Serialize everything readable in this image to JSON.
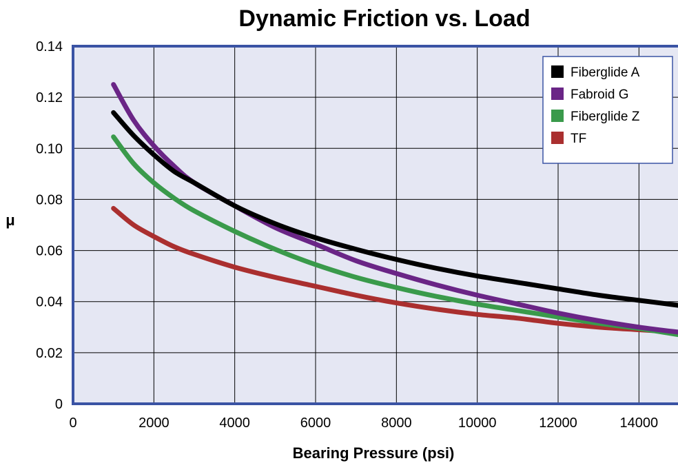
{
  "chart_data": {
    "type": "line",
    "title": "Dynamic Friction vs. Load",
    "xlabel": "Bearing Pressure (psi)",
    "ylabel": "μ",
    "xlim": [
      0,
      15000
    ],
    "ylim": [
      0,
      0.14
    ],
    "x_ticks": [
      "0",
      "2000",
      "4000",
      "6000",
      "8000",
      "10000",
      "12000",
      "14000"
    ],
    "y_ticks": [
      "0",
      "0.02",
      "0.04",
      "0.06",
      "0.08",
      "0.10",
      "0.12",
      "0.14"
    ],
    "grid": true,
    "legend_position": "top-right",
    "series": [
      {
        "name": "Fiberglide A",
        "color": "#000000",
        "x": [
          1000,
          1500,
          2000,
          2500,
          3000,
          4000,
          5000,
          6000,
          7000,
          8000,
          9000,
          10000,
          11000,
          12000,
          13000,
          14000,
          15000
        ],
        "y": [
          0.114,
          0.105,
          0.0975,
          0.091,
          0.0865,
          0.0775,
          0.0705,
          0.065,
          0.0605,
          0.0565,
          0.053,
          0.05,
          0.0475,
          0.045,
          0.0425,
          0.0405,
          0.0385
        ]
      },
      {
        "name": "Fabroid G",
        "color": "#6a2586",
        "x": [
          1000,
          1500,
          2000,
          2500,
          3000,
          4000,
          5000,
          6000,
          7000,
          8000,
          9000,
          10000,
          11000,
          12000,
          13000,
          14000,
          15000
        ],
        "y": [
          0.125,
          0.111,
          0.101,
          0.093,
          0.0865,
          0.0775,
          0.069,
          0.0625,
          0.056,
          0.051,
          0.0465,
          0.0425,
          0.039,
          0.0355,
          0.0325,
          0.03,
          0.028
        ]
      },
      {
        "name": "Fiberglide Z",
        "color": "#3a9a4b",
        "x": [
          1000,
          1500,
          2000,
          2500,
          3000,
          4000,
          5000,
          6000,
          7000,
          8000,
          9000,
          10000,
          11000,
          12000,
          13000,
          14000,
          15000
        ],
        "y": [
          0.1045,
          0.094,
          0.0865,
          0.0805,
          0.0755,
          0.0675,
          0.0605,
          0.0545,
          0.0495,
          0.0455,
          0.042,
          0.039,
          0.0365,
          0.034,
          0.0315,
          0.0295,
          0.027
        ]
      },
      {
        "name": "TF",
        "color": "#aa2f2f",
        "x": [
          1000,
          1500,
          2000,
          2500,
          3000,
          4000,
          5000,
          6000,
          7000,
          8000,
          9000,
          10000,
          11000,
          12000,
          13000,
          14000,
          15000
        ],
        "y": [
          0.0765,
          0.07,
          0.0655,
          0.0615,
          0.0585,
          0.0535,
          0.0495,
          0.046,
          0.0425,
          0.0395,
          0.037,
          0.035,
          0.0335,
          0.0315,
          0.03,
          0.029,
          0.028
        ]
      }
    ]
  },
  "colors": {
    "plot_background": "#e5e7f3",
    "frame": "#3a53a4",
    "grid": "#000000"
  }
}
